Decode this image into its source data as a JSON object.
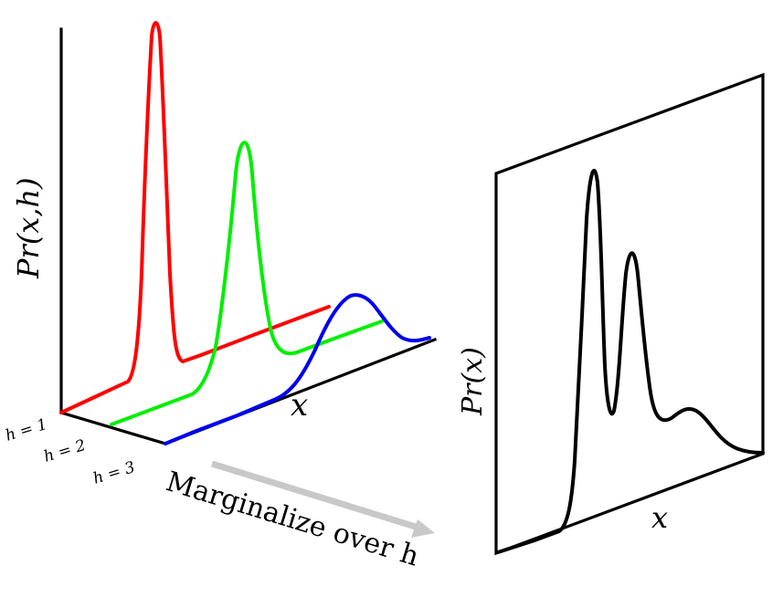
{
  "left_panel": {
    "y_axis_label": "Pr(x,h)",
    "x_axis_label": "x",
    "h_labels": [
      "h = 1",
      "h = 2",
      "h = 3"
    ],
    "series_colors": [
      "#ff0000",
      "#00ee00",
      "#0000ee"
    ]
  },
  "arrow": {
    "label": "Marginalize over h",
    "color": "#c8c8c8"
  },
  "right_panel": {
    "y_axis_label": "Pr(x)",
    "x_axis_label": "x",
    "curve_color": "#000000"
  }
}
